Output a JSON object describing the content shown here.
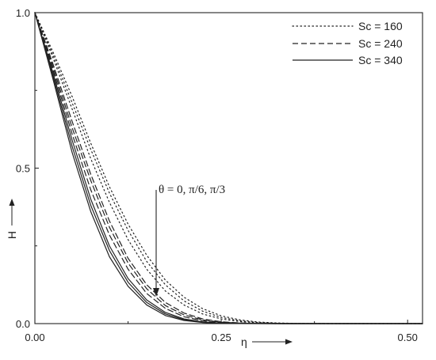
{
  "chart_data": {
    "type": "line",
    "xlabel": "η",
    "ylabel": "H",
    "xlim": [
      0.0,
      0.52
    ],
    "ylim": [
      0.0,
      1.0
    ],
    "x_ticks": [
      "0.00",
      "0.25",
      "0.50"
    ],
    "y_ticks": [
      "0.0",
      "0.5",
      "1.0"
    ],
    "grid": false,
    "legend_position": "top-right",
    "legend": [
      "Sc = 160",
      "Sc = 240",
      "Sc = 340"
    ],
    "annotation": "θ = 0, π/6, π/3",
    "series": [
      {
        "name": "Sc = 160",
        "style": "dotted",
        "theta": "0",
        "x": [
          0,
          0.025,
          0.05,
          0.075,
          0.1,
          0.125,
          0.15,
          0.175,
          0.2,
          0.225,
          0.25,
          0.275,
          0.3,
          0.325,
          0.35,
          0.4,
          0.45,
          0.52
        ],
        "y": [
          1.0,
          0.87,
          0.73,
          0.58,
          0.44,
          0.32,
          0.22,
          0.14,
          0.085,
          0.048,
          0.025,
          0.012,
          0.005,
          0.002,
          0.0007,
          0.0001,
          0.0,
          0.0
        ]
      },
      {
        "name": "Sc = 160",
        "style": "dotted",
        "theta": "π/6",
        "x": [
          0,
          0.025,
          0.05,
          0.075,
          0.1,
          0.125,
          0.15,
          0.175,
          0.2,
          0.225,
          0.25,
          0.275,
          0.3,
          0.325,
          0.35,
          0.4,
          0.45,
          0.52
        ],
        "y": [
          1.0,
          0.86,
          0.71,
          0.56,
          0.42,
          0.3,
          0.2,
          0.125,
          0.073,
          0.04,
          0.02,
          0.009,
          0.0035,
          0.0013,
          0.0004,
          0.0,
          0.0,
          0.0
        ]
      },
      {
        "name": "Sc = 160",
        "style": "dotted",
        "theta": "π/3",
        "x": [
          0,
          0.025,
          0.05,
          0.075,
          0.1,
          0.125,
          0.15,
          0.175,
          0.2,
          0.225,
          0.25,
          0.275,
          0.3,
          0.325,
          0.35,
          0.4,
          0.45,
          0.52
        ],
        "y": [
          1.0,
          0.85,
          0.69,
          0.53,
          0.39,
          0.27,
          0.175,
          0.105,
          0.06,
          0.031,
          0.015,
          0.0065,
          0.0024,
          0.0008,
          0.0002,
          0.0,
          0.0,
          0.0
        ]
      },
      {
        "name": "Sc = 240",
        "style": "dashed",
        "theta": "0",
        "x": [
          0,
          0.025,
          0.05,
          0.075,
          0.1,
          0.125,
          0.15,
          0.175,
          0.2,
          0.225,
          0.25,
          0.275,
          0.3,
          0.325,
          0.35,
          0.4,
          0.45,
          0.52
        ],
        "y": [
          1.0,
          0.83,
          0.65,
          0.48,
          0.33,
          0.21,
          0.125,
          0.068,
          0.034,
          0.015,
          0.006,
          0.002,
          0.0006,
          0.0002,
          0.0,
          0.0,
          0.0,
          0.0
        ]
      },
      {
        "name": "Sc = 240",
        "style": "dashed",
        "theta": "π/6",
        "x": [
          0,
          0.025,
          0.05,
          0.075,
          0.1,
          0.125,
          0.15,
          0.175,
          0.2,
          0.225,
          0.25,
          0.275,
          0.3,
          0.325,
          0.35,
          0.4,
          0.45,
          0.52
        ],
        "y": [
          1.0,
          0.82,
          0.63,
          0.46,
          0.31,
          0.195,
          0.112,
          0.058,
          0.028,
          0.012,
          0.0045,
          0.0015,
          0.0004,
          0.0001,
          0.0,
          0.0,
          0.0,
          0.0
        ]
      },
      {
        "name": "Sc = 240",
        "style": "dashed",
        "theta": "π/3",
        "x": [
          0,
          0.025,
          0.05,
          0.075,
          0.1,
          0.125,
          0.15,
          0.175,
          0.2,
          0.225,
          0.25,
          0.275,
          0.3,
          0.325,
          0.35,
          0.4,
          0.45,
          0.52
        ],
        "y": [
          1.0,
          0.81,
          0.61,
          0.43,
          0.285,
          0.175,
          0.097,
          0.049,
          0.022,
          0.009,
          0.0032,
          0.001,
          0.0003,
          0.0,
          0.0,
          0.0,
          0.0,
          0.0
        ]
      },
      {
        "name": "Sc = 340",
        "style": "solid",
        "theta": "0",
        "x": [
          0,
          0.025,
          0.05,
          0.075,
          0.1,
          0.125,
          0.15,
          0.175,
          0.2,
          0.225,
          0.25,
          0.275,
          0.3,
          0.325,
          0.35,
          0.4,
          0.45,
          0.52
        ],
        "y": [
          1.0,
          0.8,
          0.59,
          0.4,
          0.25,
          0.145,
          0.076,
          0.036,
          0.015,
          0.0055,
          0.0018,
          0.0005,
          0.0001,
          0.0,
          0.0,
          0.0,
          0.0,
          0.0
        ]
      },
      {
        "name": "Sc = 340",
        "style": "solid",
        "theta": "π/6",
        "x": [
          0,
          0.025,
          0.05,
          0.075,
          0.1,
          0.125,
          0.15,
          0.175,
          0.2,
          0.225,
          0.25,
          0.275,
          0.3,
          0.325,
          0.35,
          0.4,
          0.45,
          0.52
        ],
        "y": [
          1.0,
          0.79,
          0.57,
          0.38,
          0.235,
          0.133,
          0.068,
          0.031,
          0.0125,
          0.0044,
          0.0014,
          0.0004,
          0.0001,
          0.0,
          0.0,
          0.0,
          0.0,
          0.0
        ]
      },
      {
        "name": "Sc = 340",
        "style": "solid",
        "theta": "π/3",
        "x": [
          0,
          0.025,
          0.05,
          0.075,
          0.1,
          0.125,
          0.15,
          0.175,
          0.2,
          0.225,
          0.25,
          0.275,
          0.3,
          0.325,
          0.35,
          0.4,
          0.45,
          0.52
        ],
        "y": [
          1.0,
          0.78,
          0.55,
          0.36,
          0.215,
          0.12,
          0.06,
          0.026,
          0.0102,
          0.0035,
          0.001,
          0.0003,
          0.0,
          0.0,
          0.0,
          0.0,
          0.0,
          0.0
        ]
      }
    ]
  }
}
